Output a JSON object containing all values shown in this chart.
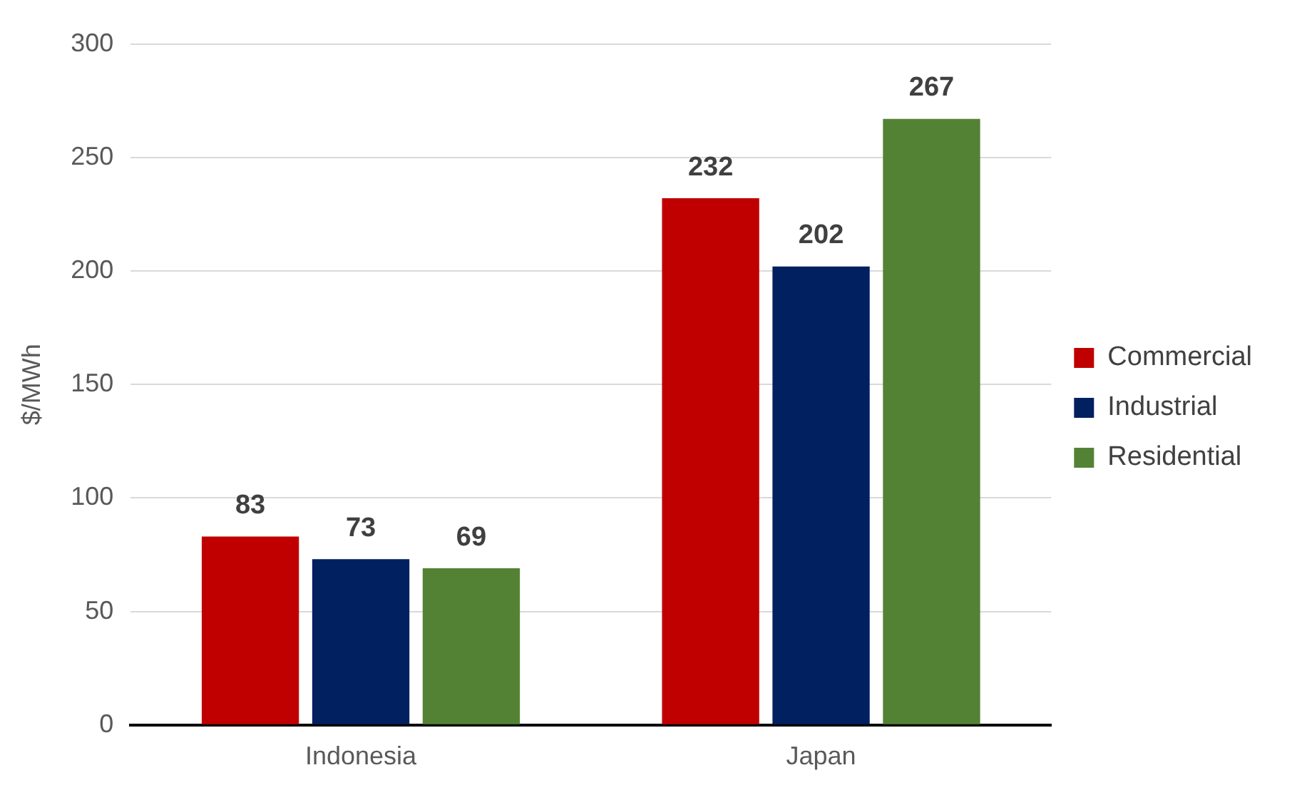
{
  "chart_data": {
    "type": "bar",
    "ylabel": "$/MWh",
    "categories": [
      "Indonesia",
      "Japan"
    ],
    "series": [
      {
        "name": "Commercial",
        "color": "#c00000",
        "values": [
          83,
          232
        ]
      },
      {
        "name": "Industrial",
        "color": "#002060",
        "values": [
          73,
          202
        ]
      },
      {
        "name": "Residential",
        "color": "#548235",
        "values": [
          69,
          267
        ]
      }
    ],
    "ylim": [
      0,
      300
    ],
    "yticks": [
      0,
      50,
      100,
      150,
      200,
      250,
      300
    ],
    "grid": "y",
    "legend": "right",
    "data_labels": true
  }
}
